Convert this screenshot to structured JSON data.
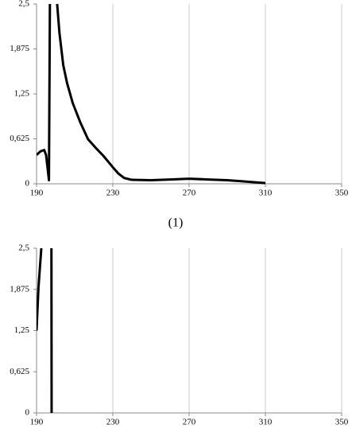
{
  "chart_data": [
    {
      "type": "line",
      "grid": "x",
      "xlim": [
        190,
        350
      ],
      "xticks": [
        190,
        230,
        270,
        310,
        350
      ],
      "ylim": [
        0,
        2.5
      ],
      "yticks": [
        0,
        {
          "value": 0.625,
          "label": "0,625"
        },
        {
          "value": 1.25,
          "label": "1,25"
        },
        {
          "value": 1.875,
          "label": "1,875"
        },
        {
          "value": 2.5,
          "label": "2,5"
        }
      ],
      "x": [
        190,
        192,
        194,
        195,
        196.5,
        197,
        199,
        200.8,
        202,
        204,
        206,
        209,
        213,
        217,
        221,
        225,
        230,
        233,
        236,
        240,
        250,
        260,
        270,
        280,
        290,
        300,
        310
      ],
      "series": [
        {
          "color": "#000000",
          "values": [
            0.4,
            0.45,
            0.47,
            0.4,
            0.05,
            2.5,
            null,
            2.5,
            2.1,
            1.65,
            1.4,
            1.12,
            0.85,
            0.62,
            0.5,
            0.39,
            0.23,
            0.14,
            0.08,
            0.055,
            0.05,
            0.06,
            0.07,
            0.06,
            0.05,
            0.03,
            0.01
          ]
        }
      ]
    },
    {
      "type": "line",
      "grid": "x",
      "xlim": [
        190,
        350
      ],
      "xticks": [
        190,
        230,
        270,
        310,
        350
      ],
      "ylim": [
        0,
        2.5
      ],
      "yticks": [
        0,
        {
          "value": 0.625,
          "label": "0,625"
        },
        {
          "value": 1.25,
          "label": "1,25"
        },
        {
          "value": 1.875,
          "label": "1,875"
        },
        {
          "value": 2.5,
          "label": "2,5"
        }
      ],
      "x": [
        190,
        191,
        192.5,
        195,
        197.8,
        197.9
      ],
      "series": [
        {
          "color": "#000000",
          "values": [
            1.25,
            1.9,
            2.5,
            null,
            2.5,
            0
          ]
        }
      ]
    }
  ],
  "caption": "(1)"
}
